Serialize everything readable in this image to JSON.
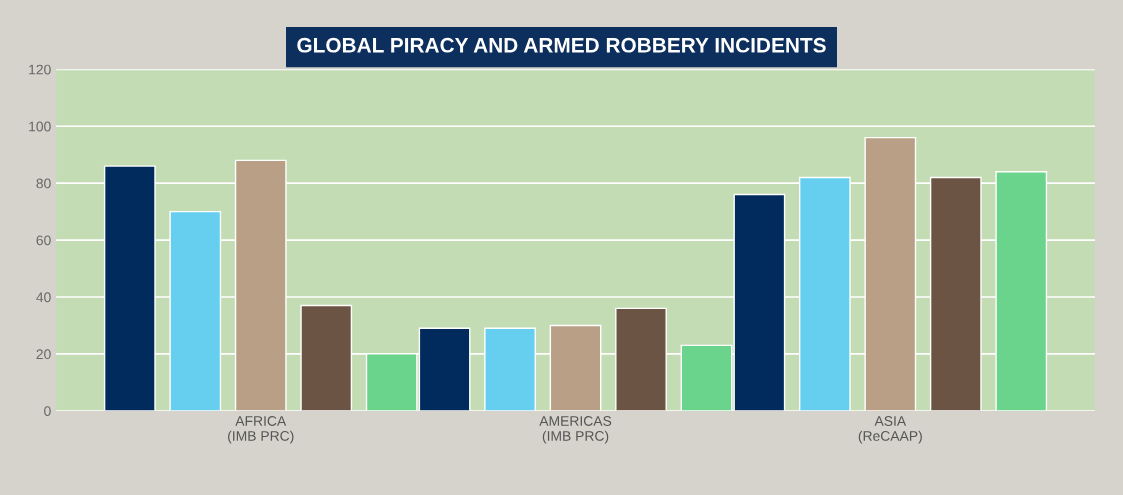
{
  "chart_data": {
    "type": "bar",
    "title": "GLOBAL PIRACY AND ARMED ROBBERY INCIDENTS",
    "categories": [
      "AFRICA\n(IMB PRC)",
      "AMERICAS\n(IMB PRC)",
      "ASIA\n(ReCAAP)"
    ],
    "series": [
      {
        "color": "#002b5c",
        "values": [
          86,
          29,
          76
        ]
      },
      {
        "color": "#66cff0",
        "values": [
          70,
          29,
          82
        ]
      },
      {
        "color": "#b89f85",
        "values": [
          88,
          30,
          96
        ]
      },
      {
        "color": "#6b5443",
        "values": [
          37,
          36,
          82
        ]
      },
      {
        "color": "#6ad48c",
        "values": [
          20,
          23,
          84
        ]
      }
    ],
    "ylim": [
      0,
      120
    ],
    "yticks": [
      0,
      20,
      40,
      60,
      80,
      100,
      120
    ],
    "grid": "y"
  }
}
